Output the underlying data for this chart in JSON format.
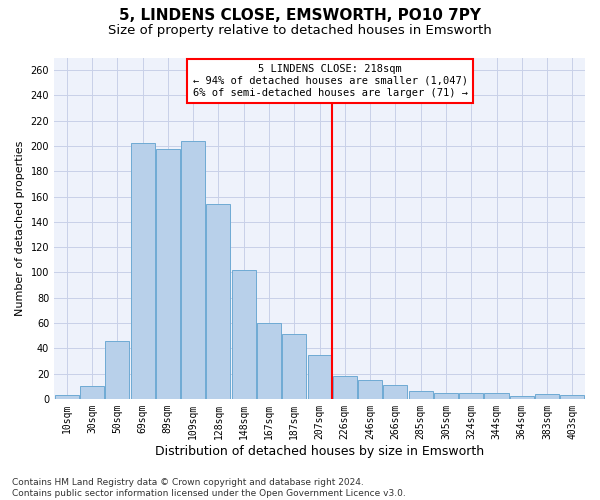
{
  "title": "5, LINDENS CLOSE, EMSWORTH, PO10 7PY",
  "subtitle": "Size of property relative to detached houses in Emsworth",
  "xlabel": "Distribution of detached houses by size in Emsworth",
  "ylabel": "Number of detached properties",
  "bar_labels": [
    "10sqm",
    "30sqm",
    "50sqm",
    "69sqm",
    "89sqm",
    "109sqm",
    "128sqm",
    "148sqm",
    "167sqm",
    "187sqm",
    "207sqm",
    "226sqm",
    "246sqm",
    "266sqm",
    "285sqm",
    "305sqm",
    "324sqm",
    "344sqm",
    "364sqm",
    "383sqm",
    "403sqm"
  ],
  "bar_values": [
    3,
    10,
    46,
    202,
    198,
    204,
    154,
    102,
    60,
    51,
    35,
    18,
    15,
    11,
    6,
    5,
    5,
    5,
    2,
    4,
    3
  ],
  "bar_color": "#b8d0ea",
  "bar_edge_color": "#6eaad4",
  "vline_color": "red",
  "vline_pos": 10.5,
  "annotation_text_line1": "5 LINDENS CLOSE: 218sqm",
  "annotation_text_line2": "← 94% of detached houses are smaller (1,047)",
  "annotation_text_line3": "6% of semi-detached houses are larger (71) →",
  "ylim": [
    0,
    270
  ],
  "yticks": [
    0,
    20,
    40,
    60,
    80,
    100,
    120,
    140,
    160,
    180,
    200,
    220,
    240,
    260
  ],
  "background_color": "#eef2fb",
  "grid_color": "#c8d0e8",
  "title_fontsize": 11,
  "subtitle_fontsize": 9.5,
  "xlabel_fontsize": 9,
  "ylabel_fontsize": 8,
  "tick_fontsize": 7,
  "annotation_fontsize": 7.5,
  "footer_fontsize": 6.5,
  "footer": "Contains HM Land Registry data © Crown copyright and database right 2024.\nContains public sector information licensed under the Open Government Licence v3.0."
}
